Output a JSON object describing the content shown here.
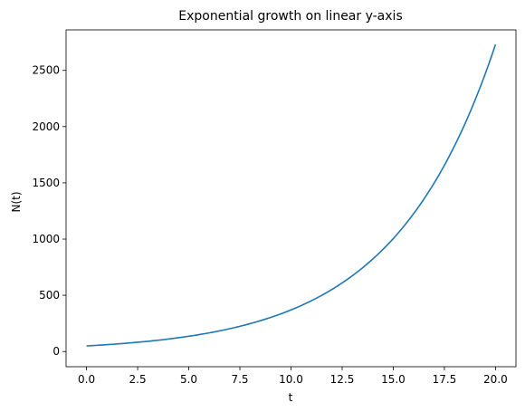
{
  "chart_data": {
    "type": "line",
    "title": "Exponential growth on linear y-axis",
    "xlabel": "t",
    "ylabel": "N(t)",
    "xlim": [
      -1.0,
      21.0
    ],
    "ylim": [
      -135,
      2860
    ],
    "grid": false,
    "x_ticks": [
      0.0,
      2.5,
      5.0,
      7.5,
      10.0,
      12.5,
      15.0,
      17.5,
      20.0
    ],
    "x_tick_labels": [
      "0.0",
      "2.5",
      "5.0",
      "7.5",
      "10.0",
      "12.5",
      "15.0",
      "17.5",
      "20.0"
    ],
    "y_ticks": [
      0,
      500,
      1000,
      1500,
      2000,
      2500
    ],
    "y_tick_labels": [
      "0",
      "500",
      "1000",
      "1500",
      "2000",
      "2500"
    ],
    "series": [
      {
        "color": "#1f77b4",
        "x": [
          0,
          1,
          2,
          3,
          4,
          5,
          6,
          7,
          8,
          9,
          10,
          11,
          12,
          13,
          14,
          15,
          16,
          17,
          18,
          19,
          20
        ],
        "y": [
          50,
          61,
          75,
          91,
          111,
          136,
          166,
          203,
          248,
          303,
          370,
          452,
          552,
          674,
          823,
          1004,
          1227,
          1498,
          1830,
          2235,
          2730
        ]
      }
    ]
  }
}
